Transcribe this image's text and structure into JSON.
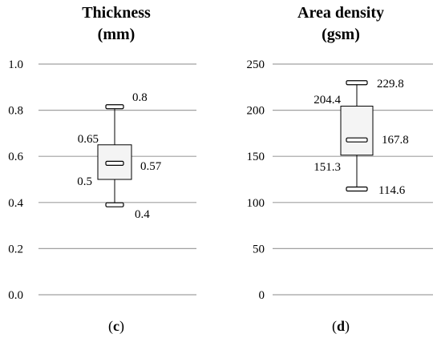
{
  "chart_data": [
    {
      "type": "box",
      "title": "Thickness",
      "subtitle": "(mm)",
      "caption_letter": "c",
      "ylim": [
        0,
        1.0
      ],
      "yticks": [
        "0.0",
        "0.2",
        "0.4",
        "0.6",
        "0.8",
        "1.0"
      ],
      "ytick_values": [
        0,
        0.2,
        0.4,
        0.6,
        0.8,
        1.0
      ],
      "grid": true,
      "box": {
        "min": 0.39,
        "q1": 0.5,
        "median": 0.57,
        "q3": 0.65,
        "max": 0.815
      },
      "labels": {
        "max": "0.8",
        "q3": "0.65",
        "median": "0.57",
        "q1": "0.5",
        "min": "0.4"
      }
    },
    {
      "type": "box",
      "title": "Area density",
      "subtitle": "(gsm)",
      "caption_letter": "d",
      "ylim": [
        0,
        250
      ],
      "yticks": [
        "0",
        "50",
        "100",
        "150",
        "200",
        "250"
      ],
      "ytick_values": [
        0,
        50,
        100,
        150,
        200,
        250
      ],
      "grid": true,
      "box": {
        "min": 114.6,
        "q1": 151.3,
        "median": 167.8,
        "q3": 204.4,
        "max": 229.8
      },
      "labels": {
        "max": "229.8",
        "q3": "204.4",
        "median": "167.8",
        "q1": "151.3",
        "min": "114.6"
      }
    }
  ]
}
